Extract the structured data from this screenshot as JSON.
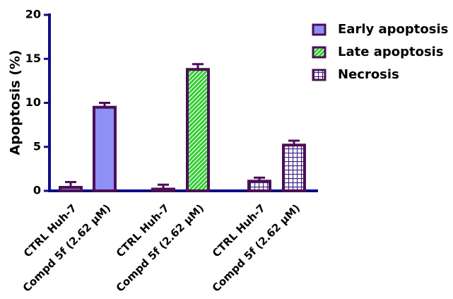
{
  "chart_data": {
    "type": "bar",
    "y_label": "Apoptosis (%)",
    "categories": [
      "CTRL Huh-7",
      "Compd 5f (2.62 μM)",
      "CTRL Huh-7",
      "Compd 5f (2.62 μM)",
      "CTRL Huh-7",
      "Compd 5f (2.62 μM)"
    ],
    "series": [
      {
        "name": "Early apoptosis",
        "color": "#8f8ff5",
        "pattern": "solid",
        "values": [
          0.4,
          9.5,
          null,
          null,
          null,
          null
        ],
        "errors": [
          0.6,
          0.5,
          null,
          null,
          null,
          null
        ]
      },
      {
        "name": "Late apoptosis",
        "color": "#33cc33",
        "pattern": "hatch",
        "values": [
          null,
          null,
          0.2,
          13.8,
          null,
          null
        ],
        "errors": [
          null,
          null,
          0.5,
          0.6,
          null,
          null
        ]
      },
      {
        "name": "Necrosis",
        "color": "#3a1f7a",
        "pattern": "grid",
        "values": [
          null,
          null,
          null,
          null,
          1.1,
          5.2
        ],
        "errors": [
          null,
          null,
          null,
          null,
          0.4,
          0.5
        ]
      }
    ],
    "edge_color": "#4b0f57",
    "axis_color": "#0d0d85",
    "ylim": [
      0,
      20
    ],
    "yticks": [
      0,
      5,
      10,
      15,
      20
    ],
    "legend": "top-right"
  }
}
